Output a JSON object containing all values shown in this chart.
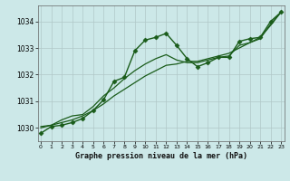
{
  "title": "Graphe pression niveau de la mer (hPa)",
  "background_color": "#cce8e8",
  "grid_color": "#b0c8c8",
  "line_color": "#1a5c1a",
  "x_ticks": [
    0,
    1,
    2,
    3,
    4,
    5,
    6,
    7,
    8,
    9,
    10,
    11,
    12,
    13,
    14,
    15,
    16,
    17,
    18,
    19,
    20,
    21,
    22,
    23
  ],
  "y_ticks": [
    1030,
    1031,
    1032,
    1033,
    1034
  ],
  "ylim": [
    1029.5,
    1034.6
  ],
  "xlim": [
    -0.3,
    23.3
  ],
  "series": [
    {
      "data": [
        1029.8,
        1030.05,
        1030.1,
        1030.2,
        1030.35,
        1030.65,
        1031.05,
        1031.75,
        1031.9,
        1032.9,
        1033.3,
        1033.4,
        1033.55,
        1033.1,
        1032.6,
        1032.3,
        1032.45,
        1032.65,
        1032.65,
        1033.25,
        1033.35,
        1033.4,
        1034.0,
        1034.35
      ],
      "marker": "D",
      "markersize": 2.5,
      "linewidth": 1.0,
      "linestyle": "-"
    },
    {
      "data": [
        1030.0,
        1030.1,
        1030.3,
        1030.45,
        1030.5,
        1030.8,
        1031.2,
        1031.5,
        1031.85,
        1032.15,
        1032.4,
        1032.6,
        1032.75,
        1032.55,
        1032.45,
        1032.45,
        1032.55,
        1032.65,
        1032.7,
        1033.1,
        1033.2,
        1033.35,
        1033.9,
        1034.35
      ],
      "marker": null,
      "markersize": 0,
      "linewidth": 0.9,
      "linestyle": "-"
    },
    {
      "data": [
        1030.05,
        1030.1,
        1030.2,
        1030.3,
        1030.45,
        1030.65,
        1030.9,
        1031.2,
        1031.45,
        1031.7,
        1031.95,
        1032.15,
        1032.35,
        1032.4,
        1032.5,
        1032.5,
        1032.6,
        1032.7,
        1032.8,
        1033.0,
        1033.2,
        1033.4,
        1033.85,
        1034.35
      ],
      "marker": null,
      "markersize": 0,
      "linewidth": 0.9,
      "linestyle": "-"
    }
  ]
}
